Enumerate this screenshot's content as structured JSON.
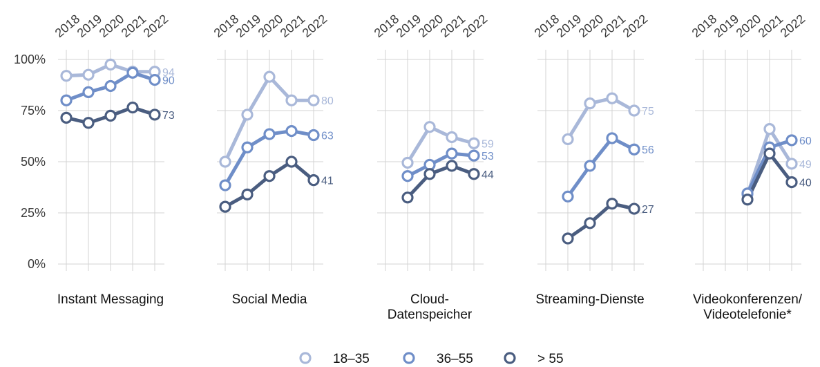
{
  "chart_data": {
    "type": "line",
    "x": [
      "2018",
      "2019",
      "2020",
      "2021",
      "2022"
    ],
    "y_ticks": [
      "0%",
      "25%",
      "50%",
      "75%",
      "100%"
    ],
    "y_tick_values": [
      0,
      25,
      50,
      75,
      100
    ],
    "ylim": [
      0,
      100
    ],
    "grid": true,
    "legend": {
      "position": "bottom",
      "entries": [
        {
          "label": "18–35",
          "color": "#a9b8d9"
        },
        {
          "label": "36–55",
          "color": "#6f8ec8"
        },
        {
          "label": "> 55",
          "color": "#4a5d80"
        }
      ]
    },
    "panels": [
      {
        "title_lines": [
          "Instant Messaging"
        ],
        "series": [
          {
            "name": "18–35",
            "values": [
              92,
              92.5,
              97.5,
              94,
              94
            ],
            "end_label": "94"
          },
          {
            "name": "36–55",
            "values": [
              80,
              84,
              87,
              93.5,
              90
            ],
            "end_label": "90"
          },
          {
            "name": "> 55",
            "values": [
              71.5,
              69,
              72.5,
              76.5,
              73
            ],
            "end_label": "73"
          }
        ]
      },
      {
        "title_lines": [
          "Social Media"
        ],
        "series": [
          {
            "name": "18–35",
            "values": [
              50,
              73,
              91.5,
              80,
              80
            ],
            "end_label": "80"
          },
          {
            "name": "36–55",
            "values": [
              38.5,
              57,
              63.5,
              65,
              63
            ],
            "end_label": "63"
          },
          {
            "name": "> 55",
            "values": [
              28,
              34,
              43,
              50,
              41
            ],
            "end_label": "41"
          }
        ]
      },
      {
        "title_lines": [
          "Cloud-",
          "Datenspeicher"
        ],
        "series": [
          {
            "name": "18–35",
            "values": [
              null,
              49.5,
              67,
              62,
              59
            ],
            "end_label": "59"
          },
          {
            "name": "36–55",
            "values": [
              null,
              43,
              48.5,
              54,
              53
            ],
            "end_label": "53"
          },
          {
            "name": "> 55",
            "values": [
              null,
              32.5,
              44,
              48,
              44
            ],
            "end_label": "44"
          }
        ]
      },
      {
        "title_lines": [
          "Streaming-Dienste"
        ],
        "series": [
          {
            "name": "18–35",
            "values": [
              null,
              61,
              78.5,
              81,
              75
            ],
            "end_label": "75"
          },
          {
            "name": "36–55",
            "values": [
              null,
              33,
              48,
              61.5,
              56
            ],
            "end_label": "56"
          },
          {
            "name": "> 55",
            "values": [
              null,
              12.5,
              20,
              29.5,
              27
            ],
            "end_label": "27"
          }
        ]
      },
      {
        "title_lines": [
          "Videokonferenzen/",
          "Videotelefonie*"
        ],
        "series": [
          {
            "name": "18–35",
            "values": [
              null,
              null,
              34,
              66,
              49
            ],
            "end_label": "49"
          },
          {
            "name": "36–55",
            "values": [
              null,
              null,
              34.5,
              57,
              60.5
            ],
            "end_label": "60"
          },
          {
            "name": "> 55",
            "values": [
              null,
              null,
              31.5,
              54,
              40
            ],
            "end_label": "40"
          }
        ]
      }
    ]
  }
}
